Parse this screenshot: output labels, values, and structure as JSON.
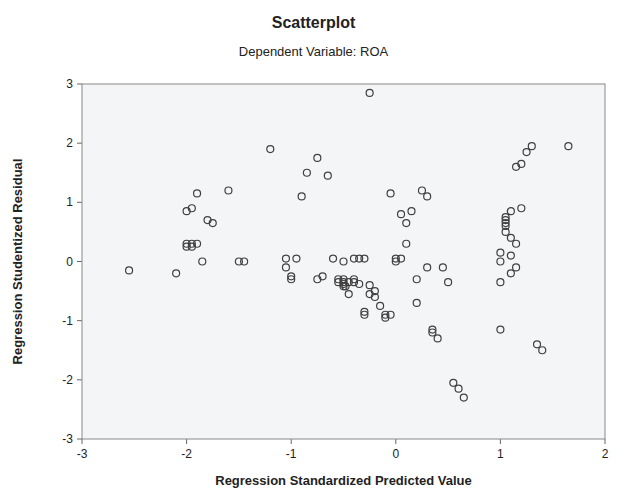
{
  "chart_data": {
    "type": "scatter",
    "title": "Scatterplot",
    "subtitle": "Dependent Variable: ROA",
    "xlabel": "Regression Standardized Predicted Value",
    "ylabel": "Regression Studentized Residual",
    "xlim": [
      -3,
      2
    ],
    "ylim": [
      -3,
      3
    ],
    "xticks": [
      -3,
      -2,
      -1,
      0,
      1,
      2
    ],
    "yticks": [
      -3,
      -2,
      -1,
      0,
      1,
      2,
      3
    ],
    "grid": false,
    "color": "#404040",
    "marker": "circle",
    "x": [
      -2.55,
      -2.1,
      -2.0,
      -2.0,
      -2.0,
      -1.95,
      -1.95,
      -1.95,
      -1.9,
      -1.9,
      -1.85,
      -1.8,
      -1.75,
      -1.6,
      -1.5,
      -1.45,
      -1.2,
      -1.05,
      -1.05,
      -1.0,
      -1.0,
      -0.95,
      -0.9,
      -0.85,
      -0.75,
      -0.75,
      -0.7,
      -0.65,
      -0.6,
      -0.55,
      -0.55,
      -0.5,
      -0.5,
      -0.5,
      -0.5,
      -0.5,
      -0.48,
      -0.45,
      -0.45,
      -0.4,
      -0.4,
      -0.4,
      -0.35,
      -0.35,
      -0.3,
      -0.3,
      -0.3,
      -0.25,
      -0.25,
      -0.25,
      -0.2,
      -0.2,
      -0.15,
      -0.1,
      -0.1,
      -0.05,
      -0.05,
      0.0,
      0.0,
      0.05,
      0.05,
      0.1,
      0.1,
      0.15,
      0.2,
      0.2,
      0.25,
      0.3,
      0.3,
      0.35,
      0.35,
      0.4,
      0.45,
      0.5,
      0.55,
      0.6,
      0.65,
      1.0,
      1.0,
      1.0,
      1.0,
      1.05,
      1.05,
      1.05,
      1.05,
      1.05,
      1.1,
      1.1,
      1.1,
      1.1,
      1.15,
      1.15,
      1.15,
      1.2,
      1.2,
      1.25,
      1.3,
      1.35,
      1.4,
      1.65
    ],
    "y": [
      -0.15,
      -0.2,
      0.25,
      0.3,
      0.85,
      0.9,
      0.25,
      0.3,
      0.3,
      1.15,
      0.0,
      0.7,
      0.65,
      1.2,
      0.0,
      0.0,
      1.9,
      -0.1,
      0.05,
      -0.25,
      -0.3,
      0.05,
      1.1,
      1.5,
      -0.3,
      1.75,
      -0.25,
      1.45,
      0.05,
      -0.3,
      -0.35,
      -0.35,
      -0.3,
      -0.38,
      -0.42,
      0.0,
      -0.42,
      -0.55,
      -0.35,
      -0.35,
      -0.3,
      0.05,
      0.05,
      -0.38,
      -0.85,
      -0.9,
      0.05,
      -0.4,
      -0.55,
      2.85,
      -0.5,
      -0.6,
      -0.75,
      -0.9,
      -0.95,
      -0.9,
      1.15,
      0.0,
      0.05,
      0.05,
      0.8,
      0.3,
      0.65,
      0.85,
      -0.3,
      -0.7,
      1.2,
      -0.1,
      1.1,
      -1.15,
      -1.2,
      -1.3,
      -0.1,
      -0.35,
      -2.05,
      -2.15,
      -2.3,
      -1.15,
      -0.35,
      0.0,
      0.15,
      0.5,
      0.6,
      0.65,
      0.7,
      0.75,
      -0.2,
      0.1,
      0.4,
      0.85,
      -0.1,
      0.3,
      1.6,
      0.9,
      1.65,
      1.85,
      1.95,
      -1.4,
      -1.5,
      1.95
    ]
  }
}
